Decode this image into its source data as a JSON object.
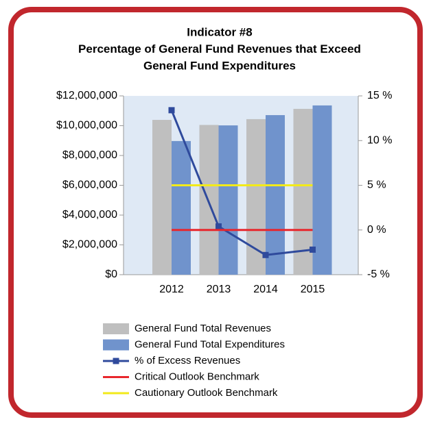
{
  "chart_data": {
    "type": "bar",
    "title": [
      "Indicator #8",
      "Percentage of General Fund Revenues that Exceed",
      "General Fund Expenditures"
    ],
    "categories": [
      "2012",
      "2013",
      "2014",
      "2015"
    ],
    "series": [
      {
        "name": "General Fund Total Revenues",
        "type": "bar",
        "color": "#bfbfbf",
        "values": [
          10390000,
          10050000,
          10440000,
          11130000
        ]
      },
      {
        "name": "General Fund Total Expenditures",
        "type": "bar",
        "color": "#7093cc",
        "values": [
          8970000,
          10020000,
          10710000,
          11360000
        ]
      },
      {
        "name": "% of Excess Revenues",
        "type": "line",
        "axis": "y2",
        "marker": "square",
        "color": "#2f4a9c",
        "values": [
          13.4,
          0.4,
          -2.8,
          -2.2
        ]
      },
      {
        "name": "Critical Outlook Benchmark",
        "type": "line",
        "axis": "y2",
        "color": "#e8262c",
        "values": [
          0,
          0,
          0,
          0
        ]
      },
      {
        "name": "Cautionary Outlook Benchmark",
        "type": "line",
        "axis": "y2",
        "color": "#f2ea1a",
        "values": [
          5,
          5,
          5,
          5
        ]
      }
    ],
    "ylim": [
      0,
      12000000
    ],
    "yticks": [
      {
        "value": 0,
        "label": "$0"
      },
      {
        "value": 2000000,
        "label": "$2,000,000"
      },
      {
        "value": 4000000,
        "label": "$4,000,000"
      },
      {
        "value": 6000000,
        "label": "$6,000,000"
      },
      {
        "value": 8000000,
        "label": "$8,000,000"
      },
      {
        "value": 10000000,
        "label": "$10,000,000"
      },
      {
        "value": 12000000,
        "label": "$12,000,000"
      }
    ],
    "y2lim": [
      -5,
      15
    ],
    "y2ticks": [
      {
        "value": -5,
        "label": "-5 %"
      },
      {
        "value": 0,
        "label": "0 %"
      },
      {
        "value": 5,
        "label": "5 %"
      },
      {
        "value": 10,
        "label": "10 %"
      },
      {
        "value": 15,
        "label": "15 %"
      }
    ],
    "grid": false,
    "legend": "bottom"
  }
}
